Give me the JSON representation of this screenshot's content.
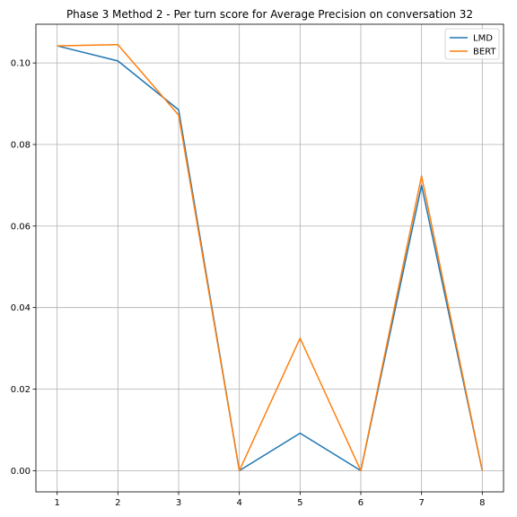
{
  "chart_data": {
    "type": "line",
    "title": "Phase 3 Method 2 - Per turn score for Average Precision on conversation 32",
    "xlabel": "",
    "ylabel": "",
    "x": [
      1,
      2,
      3,
      4,
      5,
      6,
      7,
      8
    ],
    "xlim": [
      0.65,
      8.35
    ],
    "ylim": [
      -0.0052,
      0.1095
    ],
    "xticks": [
      1,
      2,
      3,
      4,
      5,
      6,
      7,
      8
    ],
    "yticks": [
      0.0,
      0.02,
      0.04,
      0.06,
      0.08,
      0.1
    ],
    "ytick_labels": [
      "0.00",
      "0.02",
      "0.04",
      "0.06",
      "0.08",
      "0.10"
    ],
    "grid": true,
    "legend_position": "top-right",
    "series": [
      {
        "name": "LMD",
        "color": "#1f77b4",
        "values": [
          0.1042,
          0.1005,
          0.0885,
          0.0,
          0.0092,
          0.0,
          0.07,
          0.0
        ]
      },
      {
        "name": "BERT",
        "color": "#ff7f0e",
        "values": [
          0.1042,
          0.1045,
          0.0872,
          0.0,
          0.0325,
          0.0,
          0.0723,
          0.0
        ]
      }
    ]
  }
}
